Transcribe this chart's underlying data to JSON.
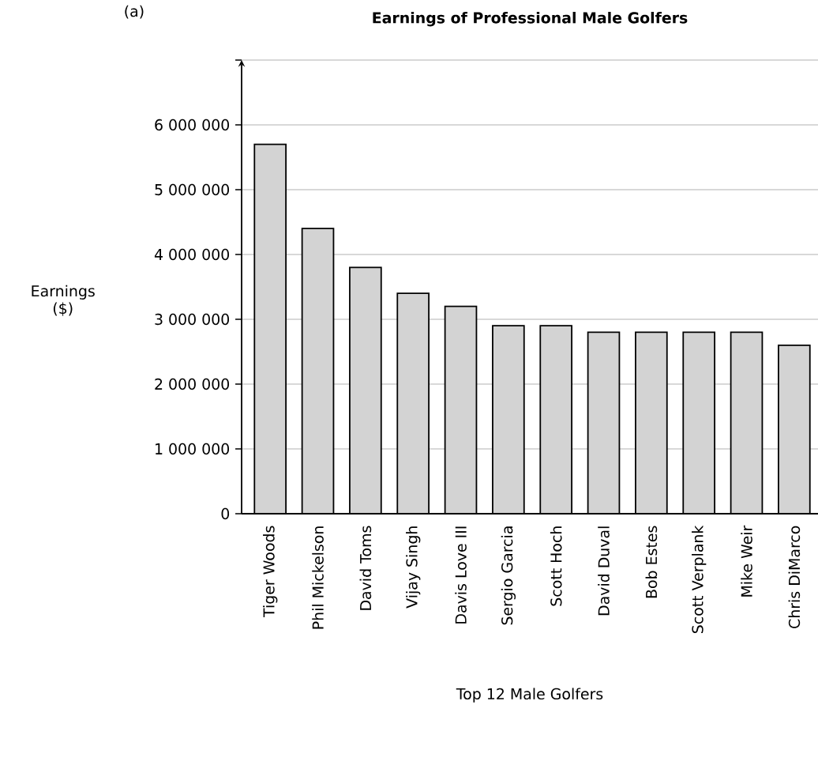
{
  "chart_data": {
    "type": "bar",
    "title": "Earnings of Professional Male Golfers",
    "xlabel": "Top 12 Male Golfers",
    "ylabel": "Earnings ($)",
    "annotations": [
      "(a)"
    ],
    "categories": [
      "Tiger Woods",
      "Phil Mickelson",
      "David Toms",
      "Vijay Singh",
      "Davis Love III",
      "Sergio Garcia",
      "Scott Hoch",
      "David Duval",
      "Bob Estes",
      "Scott Verplank",
      "Mike Weir",
      "Chris DiMarco"
    ],
    "values": [
      5700000,
      4400000,
      3800000,
      3400000,
      3200000,
      2900000,
      2900000,
      2800000,
      2800000,
      2800000,
      2800000,
      2600000
    ],
    "color": "#d3d3d3",
    "ylim": [
      0,
      7000000
    ],
    "yticks": [
      0,
      {
        "value": 1000000,
        "label": "1 000 000"
      },
      {
        "value": 2000000,
        "label": "2 000 000"
      },
      {
        "value": 3000000,
        "label": "3 000 000"
      },
      {
        "value": 4000000,
        "label": "4 000 000"
      },
      {
        "value": 5000000,
        "label": "5 000 000"
      },
      {
        "value": 6000000,
        "label": "6 000 000"
      },
      {
        "value": 7000000,
        "label": null
      }
    ],
    "grid": "y"
  }
}
